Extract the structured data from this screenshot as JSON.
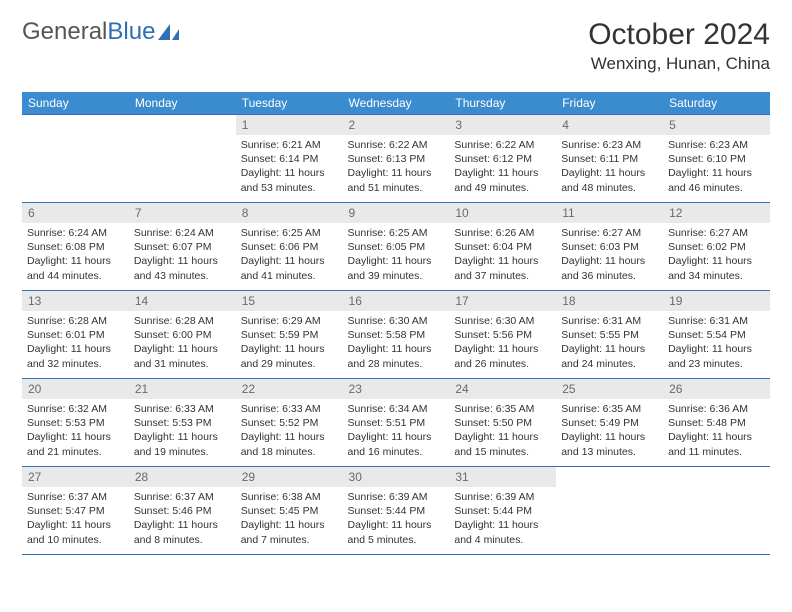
{
  "logo": {
    "word1": "General",
    "word2": "Blue"
  },
  "title": "October 2024",
  "location": "Wenxing, Hunan, China",
  "colors": {
    "header_bg": "#3b8bcf",
    "border": "#2f6fb4",
    "daynum_bg": "#e9e9e9",
    "daynum_text": "#6a6a6a",
    "text": "#333333",
    "logo_gray": "#555555",
    "logo_blue": "#2f6fb4",
    "bg": "#ffffff"
  },
  "headers": [
    "Sunday",
    "Monday",
    "Tuesday",
    "Wednesday",
    "Thursday",
    "Friday",
    "Saturday"
  ],
  "weeks": [
    [
      {
        "n": "",
        "s": "",
        "ss": "",
        "d": "",
        "empty": true
      },
      {
        "n": "",
        "s": "",
        "ss": "",
        "d": "",
        "empty": true
      },
      {
        "n": "1",
        "s": "Sunrise: 6:21 AM",
        "ss": "Sunset: 6:14 PM",
        "d": "Daylight: 11 hours and 53 minutes."
      },
      {
        "n": "2",
        "s": "Sunrise: 6:22 AM",
        "ss": "Sunset: 6:13 PM",
        "d": "Daylight: 11 hours and 51 minutes."
      },
      {
        "n": "3",
        "s": "Sunrise: 6:22 AM",
        "ss": "Sunset: 6:12 PM",
        "d": "Daylight: 11 hours and 49 minutes."
      },
      {
        "n": "4",
        "s": "Sunrise: 6:23 AM",
        "ss": "Sunset: 6:11 PM",
        "d": "Daylight: 11 hours and 48 minutes."
      },
      {
        "n": "5",
        "s": "Sunrise: 6:23 AM",
        "ss": "Sunset: 6:10 PM",
        "d": "Daylight: 11 hours and 46 minutes."
      }
    ],
    [
      {
        "n": "6",
        "s": "Sunrise: 6:24 AM",
        "ss": "Sunset: 6:08 PM",
        "d": "Daylight: 11 hours and 44 minutes."
      },
      {
        "n": "7",
        "s": "Sunrise: 6:24 AM",
        "ss": "Sunset: 6:07 PM",
        "d": "Daylight: 11 hours and 43 minutes."
      },
      {
        "n": "8",
        "s": "Sunrise: 6:25 AM",
        "ss": "Sunset: 6:06 PM",
        "d": "Daylight: 11 hours and 41 minutes."
      },
      {
        "n": "9",
        "s": "Sunrise: 6:25 AM",
        "ss": "Sunset: 6:05 PM",
        "d": "Daylight: 11 hours and 39 minutes."
      },
      {
        "n": "10",
        "s": "Sunrise: 6:26 AM",
        "ss": "Sunset: 6:04 PM",
        "d": "Daylight: 11 hours and 37 minutes."
      },
      {
        "n": "11",
        "s": "Sunrise: 6:27 AM",
        "ss": "Sunset: 6:03 PM",
        "d": "Daylight: 11 hours and 36 minutes."
      },
      {
        "n": "12",
        "s": "Sunrise: 6:27 AM",
        "ss": "Sunset: 6:02 PM",
        "d": "Daylight: 11 hours and 34 minutes."
      }
    ],
    [
      {
        "n": "13",
        "s": "Sunrise: 6:28 AM",
        "ss": "Sunset: 6:01 PM",
        "d": "Daylight: 11 hours and 32 minutes."
      },
      {
        "n": "14",
        "s": "Sunrise: 6:28 AM",
        "ss": "Sunset: 6:00 PM",
        "d": "Daylight: 11 hours and 31 minutes."
      },
      {
        "n": "15",
        "s": "Sunrise: 6:29 AM",
        "ss": "Sunset: 5:59 PM",
        "d": "Daylight: 11 hours and 29 minutes."
      },
      {
        "n": "16",
        "s": "Sunrise: 6:30 AM",
        "ss": "Sunset: 5:58 PM",
        "d": "Daylight: 11 hours and 28 minutes."
      },
      {
        "n": "17",
        "s": "Sunrise: 6:30 AM",
        "ss": "Sunset: 5:56 PM",
        "d": "Daylight: 11 hours and 26 minutes."
      },
      {
        "n": "18",
        "s": "Sunrise: 6:31 AM",
        "ss": "Sunset: 5:55 PM",
        "d": "Daylight: 11 hours and 24 minutes."
      },
      {
        "n": "19",
        "s": "Sunrise: 6:31 AM",
        "ss": "Sunset: 5:54 PM",
        "d": "Daylight: 11 hours and 23 minutes."
      }
    ],
    [
      {
        "n": "20",
        "s": "Sunrise: 6:32 AM",
        "ss": "Sunset: 5:53 PM",
        "d": "Daylight: 11 hours and 21 minutes."
      },
      {
        "n": "21",
        "s": "Sunrise: 6:33 AM",
        "ss": "Sunset: 5:53 PM",
        "d": "Daylight: 11 hours and 19 minutes."
      },
      {
        "n": "22",
        "s": "Sunrise: 6:33 AM",
        "ss": "Sunset: 5:52 PM",
        "d": "Daylight: 11 hours and 18 minutes."
      },
      {
        "n": "23",
        "s": "Sunrise: 6:34 AM",
        "ss": "Sunset: 5:51 PM",
        "d": "Daylight: 11 hours and 16 minutes."
      },
      {
        "n": "24",
        "s": "Sunrise: 6:35 AM",
        "ss": "Sunset: 5:50 PM",
        "d": "Daylight: 11 hours and 15 minutes."
      },
      {
        "n": "25",
        "s": "Sunrise: 6:35 AM",
        "ss": "Sunset: 5:49 PM",
        "d": "Daylight: 11 hours and 13 minutes."
      },
      {
        "n": "26",
        "s": "Sunrise: 6:36 AM",
        "ss": "Sunset: 5:48 PM",
        "d": "Daylight: 11 hours and 11 minutes."
      }
    ],
    [
      {
        "n": "27",
        "s": "Sunrise: 6:37 AM",
        "ss": "Sunset: 5:47 PM",
        "d": "Daylight: 11 hours and 10 minutes."
      },
      {
        "n": "28",
        "s": "Sunrise: 6:37 AM",
        "ss": "Sunset: 5:46 PM",
        "d": "Daylight: 11 hours and 8 minutes."
      },
      {
        "n": "29",
        "s": "Sunrise: 6:38 AM",
        "ss": "Sunset: 5:45 PM",
        "d": "Daylight: 11 hours and 7 minutes."
      },
      {
        "n": "30",
        "s": "Sunrise: 6:39 AM",
        "ss": "Sunset: 5:44 PM",
        "d": "Daylight: 11 hours and 5 minutes."
      },
      {
        "n": "31",
        "s": "Sunrise: 6:39 AM",
        "ss": "Sunset: 5:44 PM",
        "d": "Daylight: 11 hours and 4 minutes."
      },
      {
        "n": "",
        "s": "",
        "ss": "",
        "d": "",
        "empty": true
      },
      {
        "n": "",
        "s": "",
        "ss": "",
        "d": "",
        "empty": true
      }
    ]
  ]
}
